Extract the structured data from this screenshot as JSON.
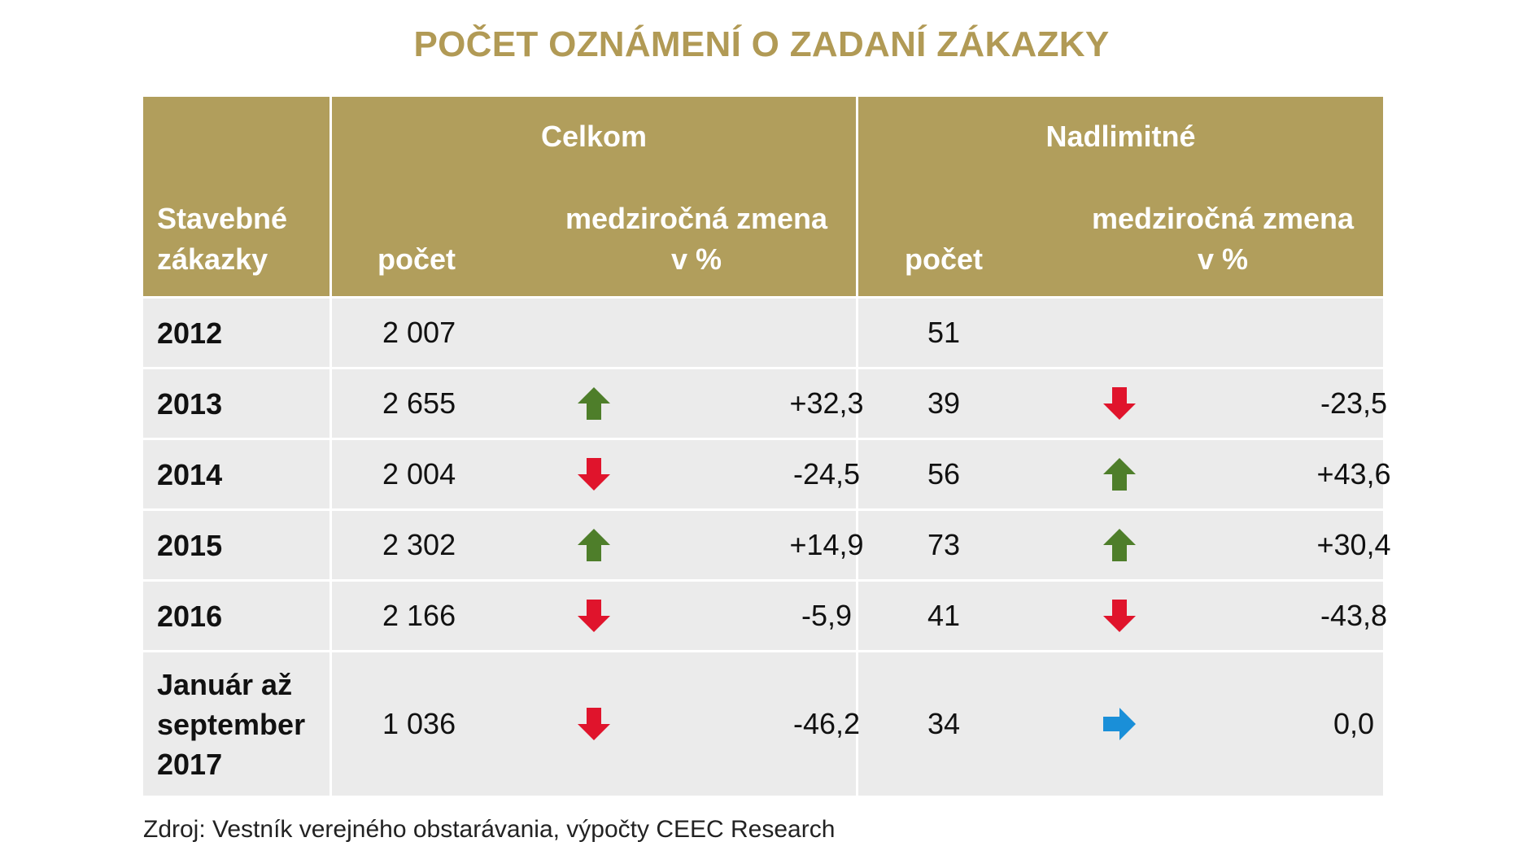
{
  "title": "POČET OZNÁMENÍ O ZADANÍ ZÁKAZKY",
  "source": "Zdroj: Vestník verejného obstarávania, výpočty CEEC Research",
  "colors": {
    "header": "#b19e5c",
    "title": "#b19a55",
    "row": "#ebebeb",
    "up": "#4e7e2a",
    "down": "#e0142c",
    "flat": "#1a8fd8"
  },
  "chart_data": {
    "type": "table",
    "title": "POČET OZNÁMENÍ O ZADANÍ ZÁKAZKY",
    "header": {
      "first_col": [
        "Stavebné",
        "zákazky"
      ],
      "groups": [
        "Celkom",
        "Nadlimitné"
      ],
      "count_label": "počet",
      "change_label": [
        "medziročná zmena",
        "v %"
      ]
    },
    "rows": [
      {
        "label": [
          "2012"
        ],
        "total": "2 007",
        "total_trend": "",
        "total_change": "",
        "above": "51",
        "above_trend": "",
        "above_change": ""
      },
      {
        "label": [
          "2013"
        ],
        "total": "2 655",
        "total_trend": "up",
        "total_change": "+32,3",
        "above": "39",
        "above_trend": "down",
        "above_change": "-23,5"
      },
      {
        "label": [
          "2014"
        ],
        "total": "2 004",
        "total_trend": "down",
        "total_change": "-24,5",
        "above": "56",
        "above_trend": "up",
        "above_change": "+43,6"
      },
      {
        "label": [
          "2015"
        ],
        "total": "2 302",
        "total_trend": "up",
        "total_change": "+14,9",
        "above": "73",
        "above_trend": "up",
        "above_change": "+30,4"
      },
      {
        "label": [
          "2016"
        ],
        "total": "2 166",
        "total_trend": "down",
        "total_change": "-5,9",
        "above": "41",
        "above_trend": "down",
        "above_change": "-43,8"
      },
      {
        "label": [
          "Január až",
          "september",
          "2017"
        ],
        "total": "1 036",
        "total_trend": "down",
        "total_change": "-46,2",
        "above": "34",
        "above_trend": "flat",
        "above_change": "0,0"
      }
    ]
  }
}
